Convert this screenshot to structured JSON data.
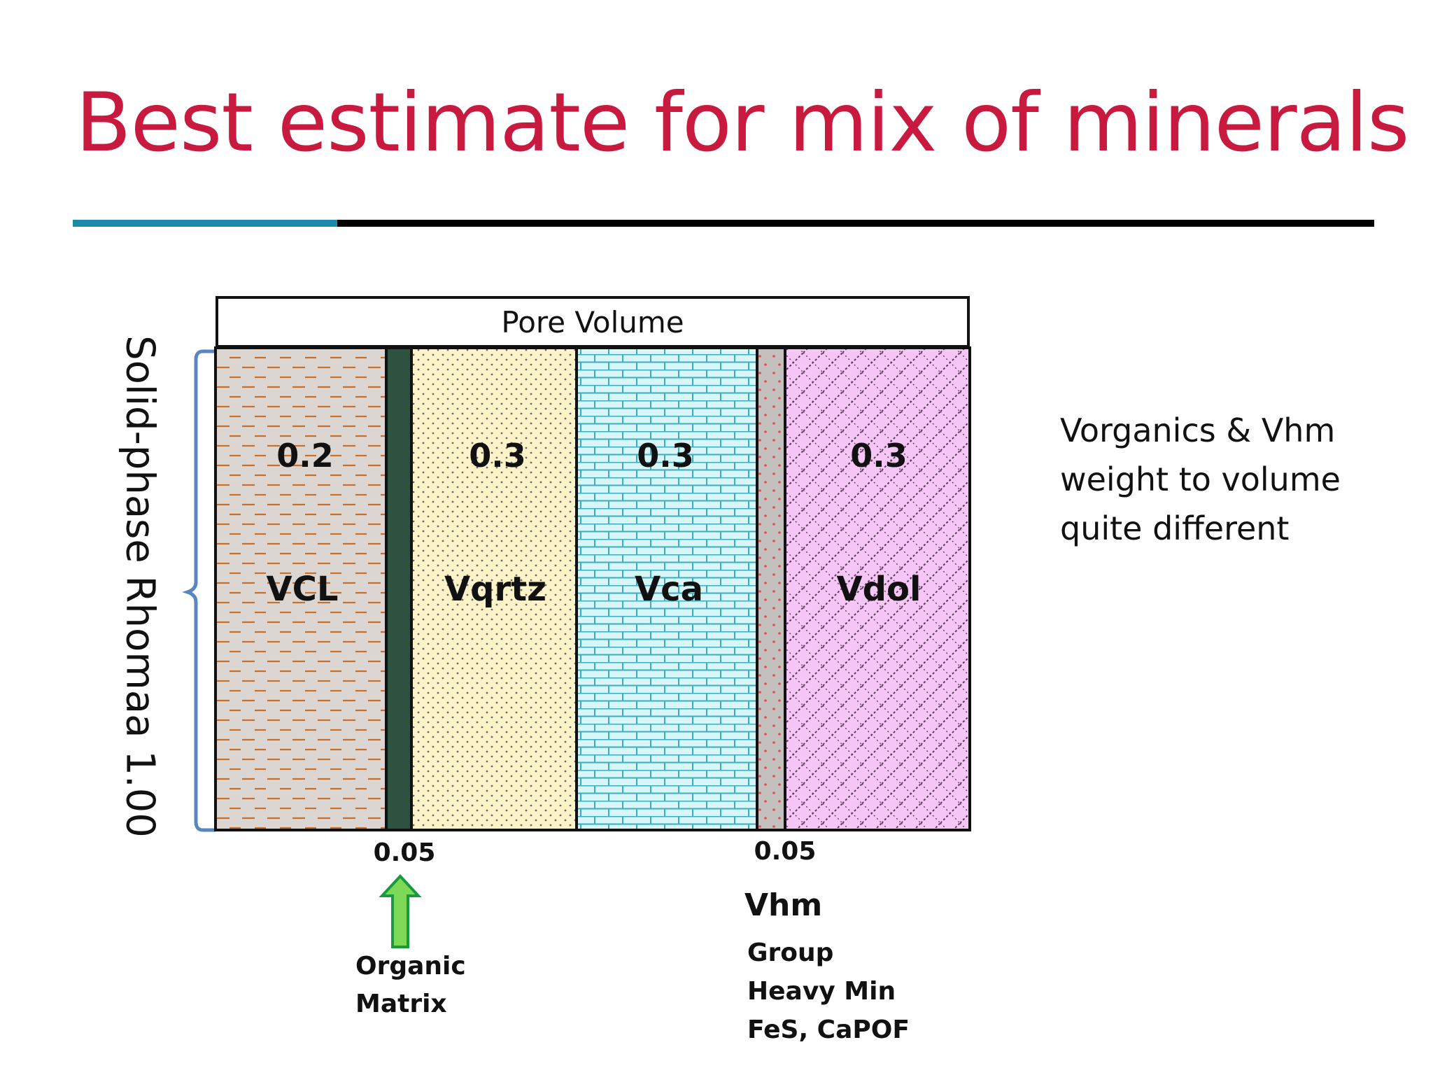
{
  "slide": {
    "title": "Best estimate for mix of minerals",
    "colors": {
      "title": "#c8193f",
      "accent_rule": "#1a8aa8",
      "rule": "#000000",
      "brace": "#5a86c0"
    }
  },
  "diagram": {
    "pore_label": "Pore Volume",
    "y_label": "Solid-phase Rhomaa 1.00",
    "columns": [
      {
        "id": "vcl",
        "value": "0.2",
        "label": "VCL",
        "fill": "#dcd6d2",
        "pattern": "dashes",
        "pattern_color": "#c96f2a"
      },
      {
        "id": "organic",
        "value": "",
        "label": "",
        "fill": "#2e5240",
        "pattern": "solid",
        "pattern_color": "#2e5240"
      },
      {
        "id": "vqrtz",
        "value": "0.3",
        "label": "Vqrtz",
        "fill": "#fdf3c8",
        "pattern": "dots",
        "pattern_color": "#6b6b6b"
      },
      {
        "id": "vca",
        "value": "0.3",
        "label": "Vca",
        "fill": "#d8f6f8",
        "pattern": "bricks",
        "pattern_color": "#3aaec0"
      },
      {
        "id": "vhm",
        "value": "",
        "label": "",
        "fill": "#c4c0be",
        "pattern": "specks",
        "pattern_color": "#e24d4d"
      },
      {
        "id": "vdol",
        "value": "0.3",
        "label": "Vdol",
        "fill": "#f6c6f6",
        "pattern": "crosshatch",
        "pattern_color": "#5a3a5a"
      }
    ],
    "ticks": [
      {
        "id": "organic",
        "value": "0.05"
      },
      {
        "id": "vhm",
        "value": "0.05"
      }
    ],
    "organic_arrow": {
      "label_lines": [
        "Organic",
        "Matrix"
      ],
      "fill": "#7ed957",
      "stroke": "#1a9a3a"
    },
    "vhm_note": {
      "title": "Vhm",
      "lines": [
        "Group",
        "Heavy Min",
        "FeS, CaPOF"
      ]
    }
  },
  "side_note": {
    "lines": [
      "Vorganics & Vhm",
      "weight to volume",
      "quite different"
    ]
  }
}
